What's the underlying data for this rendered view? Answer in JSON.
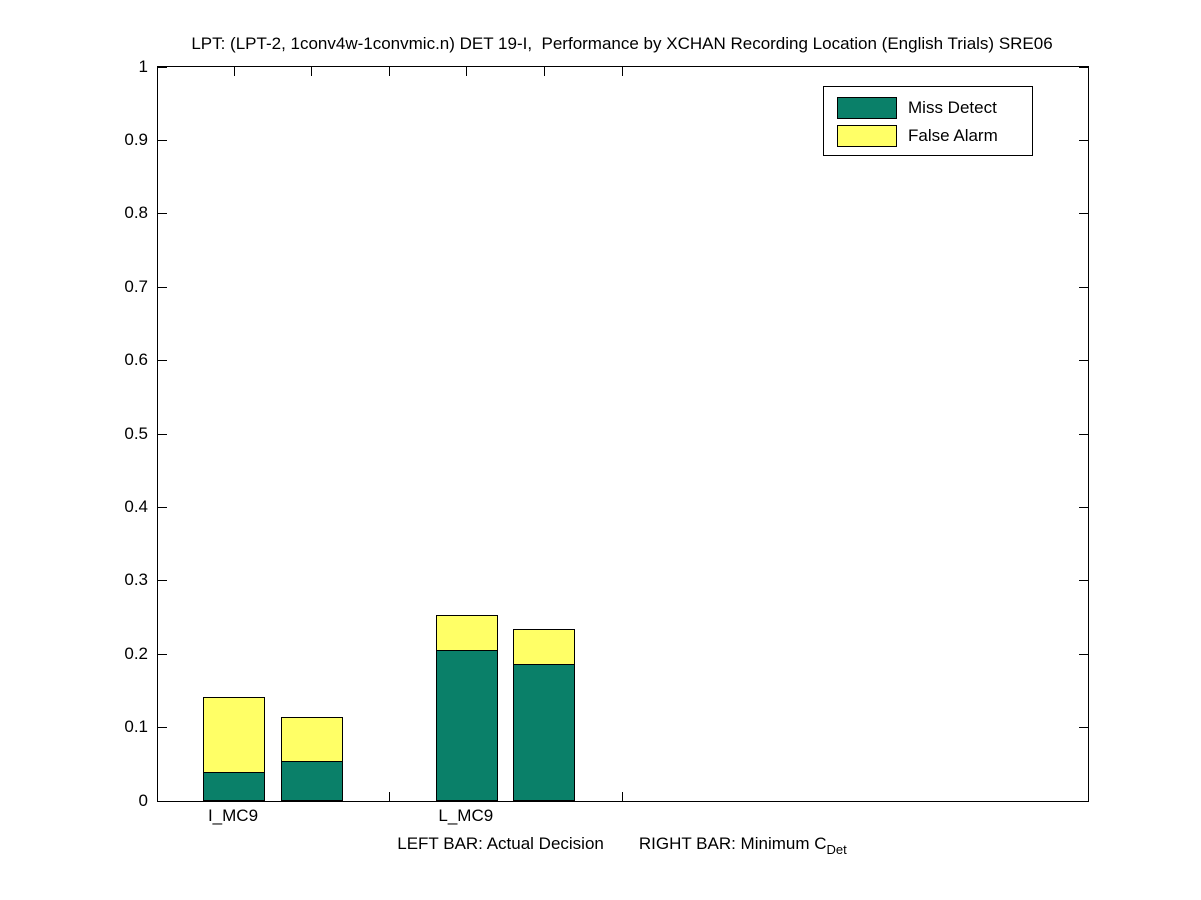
{
  "title": "LPT: (LPT-2, 1conv4w-1convmic.n) DET 19-I,  Performance by XCHAN Recording Location (English Trials) SRE06",
  "colors": {
    "miss_detect": "#0A8069",
    "false_alarm": "#FFFF66",
    "axis": "#000000",
    "background": "#FFFFFF"
  },
  "legend": {
    "items": [
      {
        "label": "Miss Detect",
        "color_key": "miss_detect"
      },
      {
        "label": "False Alarm",
        "color_key": "false_alarm"
      }
    ]
  },
  "footnote": {
    "left_bar_text": "LEFT BAR: Actual Decision",
    "right_bar_text": "RIGHT BAR: Minimum C",
    "right_bar_subscript": "Det"
  },
  "chart_data": {
    "type": "bar",
    "stacked": true,
    "title": "LPT: (LPT-2, 1conv4w-1convmic.n) DET 19-I,  Performance by XCHAN Recording Location (English Trials) SRE06",
    "xlabel": "",
    "ylabel": "",
    "ylim": [
      0,
      1
    ],
    "ytick_step": 0.1,
    "ytick_labels": [
      "0",
      "0.1",
      "0.2",
      "0.3",
      "0.4",
      "0.5",
      "0.6",
      "0.7",
      "0.8",
      "0.9",
      "1"
    ],
    "grid": false,
    "legend_position": "top-right",
    "stack_order": [
      "Miss Detect",
      "False Alarm"
    ],
    "categories": [
      "I_MC9",
      "L_MC9"
    ],
    "groups": [
      {
        "category": "I_MC9",
        "bars": [
          {
            "name": "Actual Decision",
            "miss_detect": 0.04,
            "false_alarm": 0.102,
            "total": 0.142
          },
          {
            "name": "Minimum CDet",
            "miss_detect": 0.054,
            "false_alarm": 0.06,
            "total": 0.114
          }
        ]
      },
      {
        "category": "L_MC9",
        "bars": [
          {
            "name": "Actual Decision",
            "miss_detect": 0.206,
            "false_alarm": 0.048,
            "total": 0.254
          },
          {
            "name": "Minimum CDet",
            "miss_detect": 0.186,
            "false_alarm": 0.049,
            "total": 0.235
          }
        ]
      }
    ]
  }
}
